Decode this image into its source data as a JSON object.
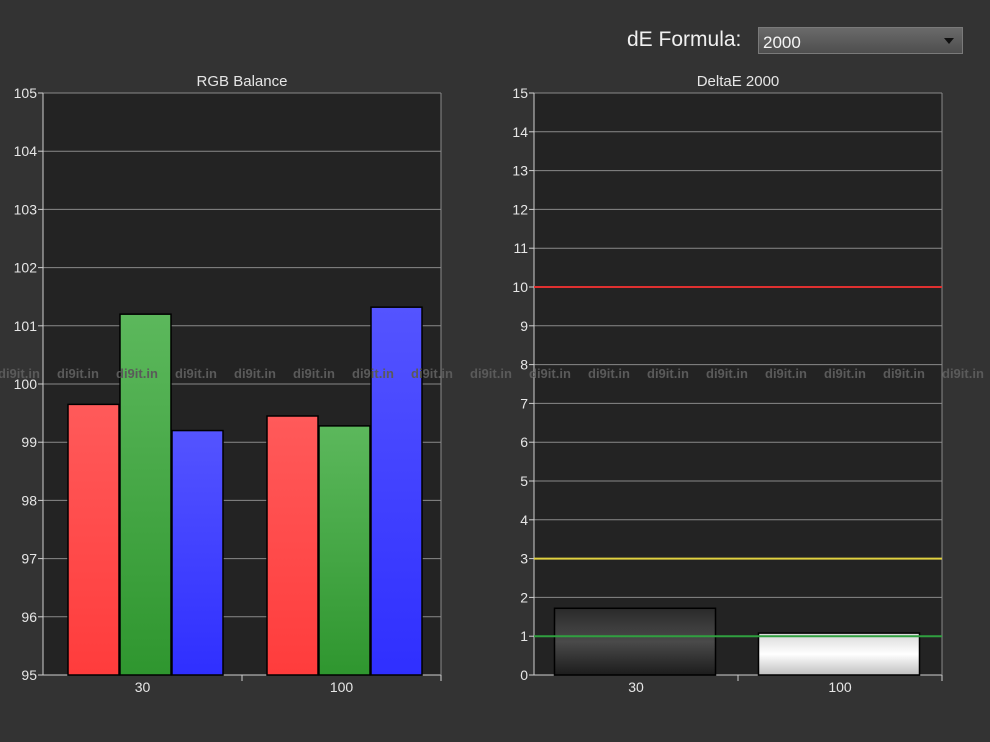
{
  "formula": {
    "label": "dE Formula:",
    "selected": "2000"
  },
  "watermark": "di9it.in",
  "colors": {
    "background": "#333333",
    "plot_background": "#232323",
    "grid": "#8a8a8a",
    "red": "#ff4444",
    "green": "#44a844",
    "blue": "#3f3fff",
    "threshold_red": "#e03030",
    "threshold_yellow": "#e0d040",
    "threshold_green": "#30a040"
  },
  "chart_data": [
    {
      "type": "bar",
      "title": "RGB Balance",
      "categories": [
        "30",
        "100"
      ],
      "series": [
        {
          "color": "red",
          "values": [
            99.65,
            99.45
          ]
        },
        {
          "color": "green",
          "values": [
            101.2,
            99.28
          ]
        },
        {
          "color": "blue",
          "values": [
            99.2,
            101.32
          ]
        }
      ],
      "ylim": [
        95,
        105
      ],
      "yticks": [
        95,
        96,
        97,
        98,
        99,
        100,
        101,
        102,
        103,
        104,
        105
      ],
      "grid": true
    },
    {
      "type": "bar",
      "title": "DeltaE 2000",
      "categories": [
        "30",
        "100"
      ],
      "values": [
        1.72,
        1.08
      ],
      "bar_styles": [
        "dark",
        "white"
      ],
      "thresholds": [
        {
          "value": 10,
          "color": "red"
        },
        {
          "value": 3,
          "color": "yellow"
        },
        {
          "value": 1,
          "color": "green"
        }
      ],
      "ylim": [
        0,
        15
      ],
      "yticks": [
        0,
        1,
        2,
        3,
        4,
        5,
        6,
        7,
        8,
        9,
        10,
        11,
        12,
        13,
        14,
        15
      ],
      "grid": true
    }
  ]
}
